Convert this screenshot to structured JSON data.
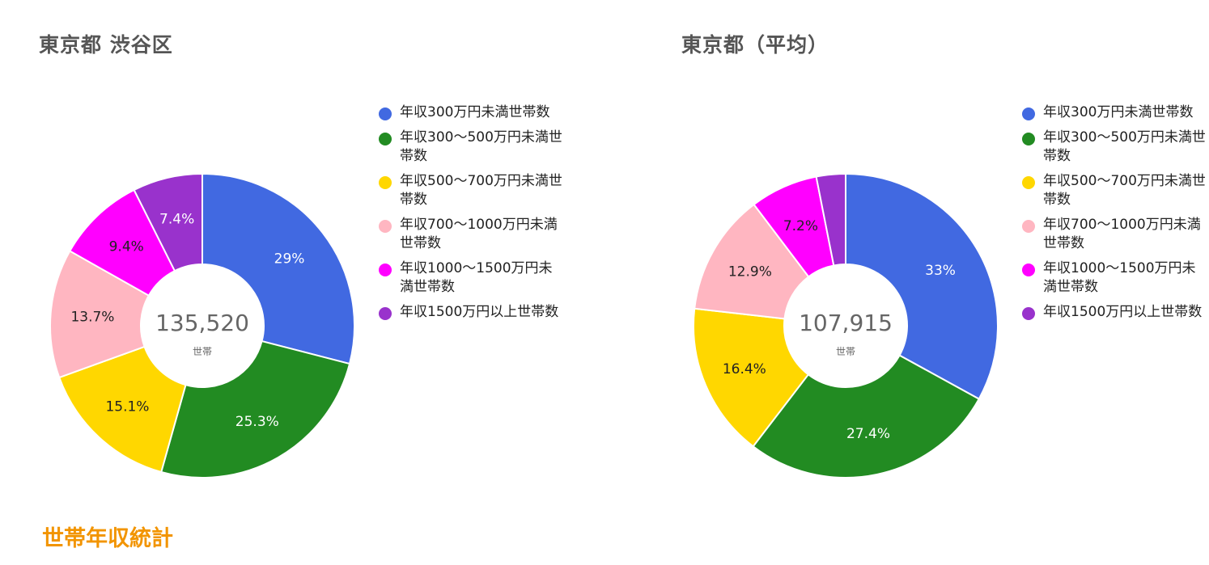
{
  "section_heading": "世帯年収統計",
  "colors": [
    "#4169e1",
    "#228b22",
    "#ffd700",
    "#ffb6c1",
    "#ff00ff",
    "#9932cc"
  ],
  "chart_data": [
    {
      "type": "pie",
      "title": "東京都 渋谷区",
      "center_value": "135,520",
      "center_unit": "世帯",
      "categories": [
        "年収300万円未満世帯数",
        "年収300～500万円未満世帯数",
        "年収500～700万円未満世帯数",
        "年収700～1000万円未満世帯数",
        "年収1000～1500万円未満世帯数",
        "年収1500万円以上世帯数"
      ],
      "values": [
        29.0,
        25.3,
        15.1,
        13.7,
        9.4,
        7.4
      ],
      "value_labels": [
        "29%",
        "25.3%",
        "15.1%",
        "13.7%",
        "9.4%",
        "7.4%"
      ],
      "legend_position": "right"
    },
    {
      "type": "pie",
      "title": "東京都（平均）",
      "center_value": "107,915",
      "center_unit": "世帯",
      "categories": [
        "年収300万円未満世帯数",
        "年収300～500万円未満世帯数",
        "年収500～700万円未満世帯数",
        "年収700～1000万円未満世帯数",
        "年収1000～1500万円未満世帯数",
        "年収1500万円以上世帯数"
      ],
      "values": [
        33.0,
        27.4,
        16.4,
        12.9,
        7.2,
        3.1
      ],
      "value_labels": [
        "33%",
        "27.4%",
        "16.4%",
        "12.9%",
        "7.2%",
        ""
      ],
      "legend_position": "right"
    }
  ]
}
